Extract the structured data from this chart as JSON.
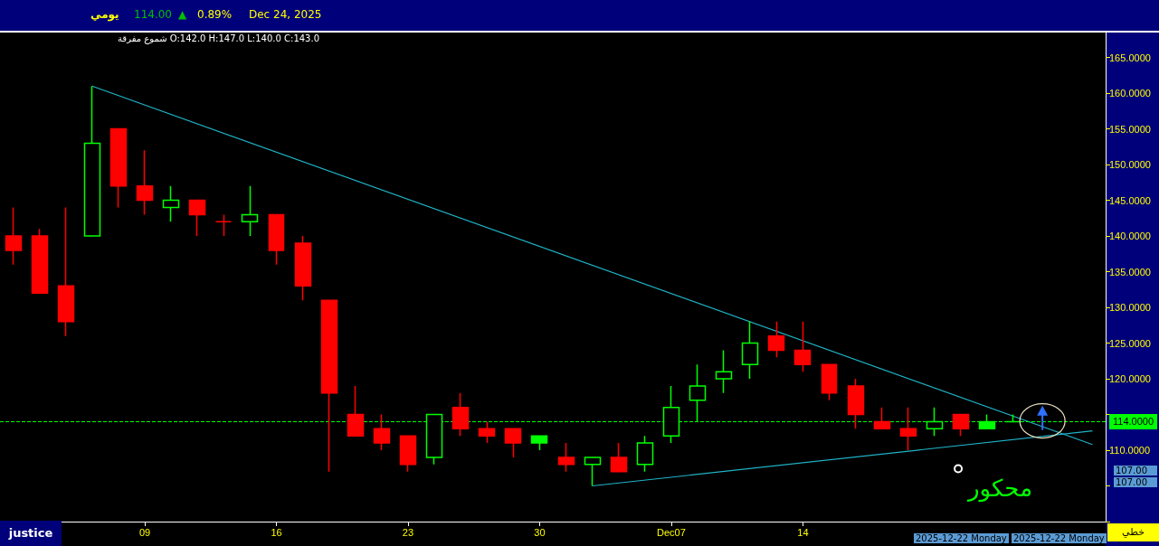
{
  "chart_data": {
    "type": "candlestick",
    "title": "يومي",
    "subtitle": "شموع مفرقة  O:142.0  H:147.0  L:140.0  C:143.0",
    "categories": [
      null,
      null,
      null,
      null,
      null,
      "09",
      null,
      null,
      null,
      null,
      "16",
      null,
      null,
      null,
      null,
      "23",
      null,
      null,
      null,
      null,
      "30",
      null,
      null,
      null,
      null,
      "Dec07",
      null,
      null,
      null,
      null,
      "14",
      null,
      null,
      null,
      null,
      null,
      null,
      null,
      null,
      null,
      null,
      null
    ],
    "ohlc": [
      [
        140,
        144,
        136,
        138
      ],
      [
        140,
        141,
        132,
        132
      ],
      [
        133,
        144,
        126,
        128
      ],
      [
        140,
        161,
        140,
        153
      ],
      [
        155,
        155,
        144,
        147
      ],
      [
        147,
        152,
        143,
        145
      ],
      [
        144,
        147,
        142,
        145
      ],
      [
        145,
        145,
        140,
        143
      ],
      [
        142,
        143,
        140,
        142
      ],
      [
        142,
        147,
        140,
        143
      ],
      [
        143,
        143,
        136,
        138
      ],
      [
        139,
        140,
        131,
        133
      ],
      [
        131,
        131,
        107,
        118
      ],
      [
        115,
        119,
        112,
        112
      ],
      [
        113,
        115,
        110,
        111
      ],
      [
        112,
        112,
        107,
        108
      ],
      [
        109,
        115,
        108,
        115
      ],
      [
        116,
        118,
        112,
        113
      ],
      [
        113,
        114,
        111,
        112
      ],
      [
        113,
        113,
        109,
        111
      ],
      [
        112,
        112,
        110,
        111
      ],
      [
        109,
        111,
        107,
        108
      ],
      [
        108,
        109,
        105,
        109
      ],
      [
        109,
        111,
        107,
        107
      ],
      [
        108,
        112,
        107,
        111
      ],
      [
        112,
        119,
        111,
        116
      ],
      [
        117,
        122,
        114,
        119
      ],
      [
        120,
        124,
        118,
        121
      ],
      [
        122,
        128,
        120,
        125
      ],
      [
        126,
        128,
        123,
        124
      ],
      [
        124,
        128,
        121,
        122
      ],
      [
        122,
        122,
        117,
        118
      ],
      [
        119,
        120,
        113,
        115
      ],
      [
        114,
        116,
        113,
        113
      ],
      [
        113,
        116,
        110,
        112
      ],
      [
        113,
        116,
        112,
        114
      ],
      [
        115,
        115,
        112,
        113
      ],
      [
        114,
        115,
        113,
        113
      ],
      [
        114,
        115,
        114,
        114
      ],
      null,
      null,
      null
    ],
    "colors": [
      "#ff0000",
      "#ff0000",
      "#ff0000",
      "#00ff00",
      "#ff0000",
      "#ff0000",
      "#00ff00",
      "#ff0000",
      "#ff0000",
      "#00ff00",
      "#ff0000",
      "#ff0000",
      "#ff0000",
      "#ff0000",
      "#ff0000",
      "#ff0000",
      "#00ff00",
      "#ff0000",
      "#ff0000",
      "#ff0000",
      "#00ff00",
      "#ff0000",
      "#00ff00",
      "#ff0000",
      "#00ff00",
      "#00ff00",
      "#00ff00",
      "#00ff00",
      "#00ff00",
      "#ff0000",
      "#ff0000",
      "#ff0000",
      "#ff0000",
      "#ff0000",
      "#ff0000",
      "#00ff00",
      "#ff0000",
      "#00ff00",
      "#00ff00",
      null,
      null,
      null
    ],
    "series": [
      {
        "type": "line",
        "color": "#1fb5c8",
        "values": [
          null,
          null,
          null,
          161,
          null,
          null,
          null,
          null,
          null,
          null,
          null,
          null,
          null,
          null,
          null,
          null,
          null,
          null,
          null,
          null,
          null,
          null,
          null,
          null,
          null,
          null,
          null,
          null,
          null,
          null,
          null,
          null,
          null,
          null,
          null,
          null,
          null,
          null,
          null,
          null,
          null,
          110.8
        ]
      },
      {
        "type": "line",
        "color": "#1fb5c8",
        "values": [
          null,
          null,
          null,
          null,
          null,
          null,
          null,
          null,
          null,
          null,
          null,
          null,
          null,
          null,
          null,
          null,
          null,
          null,
          null,
          null,
          null,
          null,
          105,
          null,
          null,
          null,
          null,
          null,
          null,
          null,
          null,
          null,
          null,
          null,
          null,
          null,
          null,
          null,
          null,
          null,
          null,
          112.7
        ]
      }
    ],
    "ylim": [
      100,
      168.5
    ],
    "yticks": [
      {
        "value": 100,
        "label": null
      },
      {
        "value": 105,
        "label": null
      },
      {
        "value": 110,
        "label": "110.0000"
      },
      {
        "value": 115,
        "label": null
      },
      {
        "value": 120,
        "label": "120.0000"
      },
      {
        "value": 125,
        "label": "125.0000"
      },
      {
        "value": 130,
        "label": "130.0000"
      },
      {
        "value": 135,
        "label": "135.0000"
      },
      {
        "value": 140,
        "label": "140.0000"
      },
      {
        "value": 145,
        "label": "145.0000"
      },
      {
        "value": 150,
        "label": "150.0000"
      },
      {
        "value": 155,
        "label": "155.0000"
      },
      {
        "value": 160,
        "label": "160.0000"
      },
      {
        "value": 165,
        "label": "165.0000"
      }
    ],
    "ref_lines": [
      {
        "axis": "y",
        "value": 114,
        "label": "114.0000",
        "color": "#00ff00",
        "line_style": "dashed"
      }
    ],
    "annotations": [
      "114.00",
      "▲",
      "0.89%",
      "Dec 24, 2025",
      {
        "text": "محكور"
      },
      "107.00",
      "107.00",
      "justice",
      "خطي",
      "2025-12-22 Monday",
      "2025-12-22 Monday"
    ],
    "grid": false
  }
}
